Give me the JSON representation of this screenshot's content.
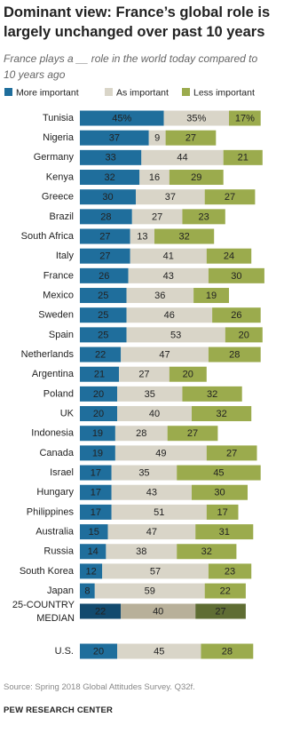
{
  "chart_data": {
    "type": "stacked-bar",
    "title": "Dominant view: France’s global role is largely unchanged over past 10 years",
    "subtitle": "France plays a __ role in the world today compared to 10 years ago",
    "categories": [
      "Tunisia",
      "Nigeria",
      "Germany",
      "Kenya",
      "Greece",
      "Brazil",
      "South Africa",
      "Italy",
      "France",
      "Mexico",
      "Sweden",
      "Spain",
      "Netherlands",
      "Argentina",
      "Poland",
      "UK",
      "Indonesia",
      "Canada",
      "Israel",
      "Hungary",
      "Philippines",
      "Australia",
      "Russia",
      "South Korea",
      "Japan"
    ],
    "series": [
      {
        "name": "More important",
        "color": "#1f6e9c",
        "values": [
          45,
          37,
          33,
          32,
          30,
          28,
          27,
          27,
          26,
          25,
          25,
          25,
          22,
          21,
          20,
          20,
          19,
          19,
          17,
          17,
          17,
          15,
          14,
          12,
          8
        ],
        "value_labels": [
          "45%",
          "37",
          "33",
          "32",
          "30",
          "28",
          "27",
          "27",
          "26",
          "25",
          "25",
          "25",
          "22",
          "21",
          "20",
          "20",
          "19",
          "19",
          "17",
          "17",
          "17",
          "15",
          "14",
          "12",
          "8"
        ]
      },
      {
        "name": "As important",
        "color": "#d9d5c8",
        "values": [
          35,
          9,
          44,
          16,
          37,
          27,
          13,
          41,
          43,
          36,
          46,
          53,
          47,
          27,
          35,
          40,
          28,
          49,
          35,
          43,
          51,
          47,
          38,
          57,
          59
        ],
        "value_labels": [
          "35%",
          "9",
          "44",
          "16",
          "37",
          "27",
          "13",
          "41",
          "43",
          "36",
          "46",
          "53",
          "47",
          "27",
          "35",
          "40",
          "28",
          "49",
          "35",
          "43",
          "51",
          "47",
          "38",
          "57",
          "59"
        ]
      },
      {
        "name": "Less important",
        "color": "#9bab4d",
        "values": [
          17,
          27,
          21,
          29,
          27,
          23,
          32,
          24,
          30,
          19,
          26,
          20,
          28,
          20,
          32,
          32,
          27,
          27,
          45,
          30,
          17,
          31,
          32,
          23,
          22
        ],
        "value_labels": [
          "17%",
          "27",
          "21",
          "29",
          "27",
          "23",
          "32",
          "24",
          "30",
          "19",
          "26",
          "20",
          "28",
          "20",
          "32",
          "32",
          "27",
          "27",
          "45",
          "30",
          "17",
          "31",
          "32",
          "23",
          "22"
        ]
      }
    ],
    "median": {
      "label": "25-COUNTRY MEDIAN",
      "values": [
        22,
        40,
        27
      ],
      "colors": [
        "#124a6e",
        "#b8b09a",
        "#5f6d33"
      ]
    },
    "us": {
      "label": "U.S.",
      "values": [
        20,
        45,
        28
      ]
    },
    "xlim": [
      0,
      100
    ],
    "source": "Source: Spring 2018 Global Attitudes Survey. Q32f.",
    "credit": "PEW RESEARCH CENTER"
  }
}
